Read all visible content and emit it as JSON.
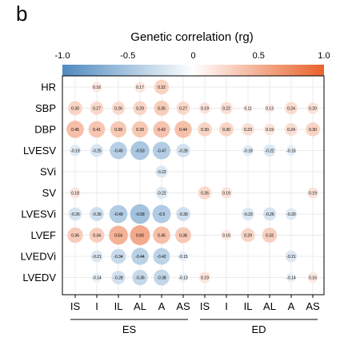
{
  "panel_letter": "b",
  "colors": {
    "negative": "#4f8ac0",
    "neutral": "#ffffff",
    "positive": "#e8622a",
    "grid": "#ebebeb",
    "frame": "#000000"
  },
  "chart_data": {
    "type": "heatmap",
    "title": "Genetic correlation (rg)",
    "color_scale": {
      "min": -1.0,
      "max": 1.0,
      "ticks": [
        -1.0,
        -0.5,
        0,
        0.5,
        1.0
      ],
      "tick_labels": [
        "-1.0",
        "-0.5",
        "0",
        "0.5",
        "1.0"
      ]
    },
    "rows": [
      "HR",
      "SBP",
      "DBP",
      "LVESV",
      "SVi",
      "SV",
      "LVESVi",
      "LVEF",
      "LVEDVi",
      "LVEDV"
    ],
    "columns": [
      "IS",
      "I",
      "IL",
      "AL",
      "A",
      "AS",
      "IS",
      "I",
      "IL",
      "AL",
      "A",
      "AS"
    ],
    "column_groups": [
      {
        "label": "ES",
        "span": [
          0,
          5
        ]
      },
      {
        "label": "ED",
        "span": [
          6,
          11
        ]
      }
    ],
    "values": [
      [
        null,
        0.16,
        null,
        0.17,
        0.32,
        null,
        null,
        null,
        null,
        null,
        null,
        null
      ],
      [
        0.3,
        0.27,
        0.26,
        0.29,
        0.35,
        0.27,
        0.19,
        0.22,
        0.11,
        0.13,
        0.24,
        0.2
      ],
      [
        0.45,
        0.41,
        0.39,
        0.39,
        0.42,
        0.44,
        0.3,
        0.3,
        0.23,
        0.19,
        0.24,
        0.3
      ],
      [
        -0.19,
        -0.25,
        -0.45,
        -0.53,
        -0.47,
        -0.28,
        null,
        null,
        -0.18,
        -0.22,
        -0.16,
        null
      ],
      [
        null,
        null,
        null,
        null,
        -0.22,
        null,
        null,
        null,
        null,
        null,
        null,
        null
      ],
      [
        0.18,
        null,
        null,
        null,
        -0.22,
        null,
        0.26,
        0.19,
        null,
        null,
        null,
        0.19
      ],
      [
        -0.26,
        -0.3,
        -0.49,
        -0.58,
        -0.5,
        -0.3,
        null,
        null,
        -0.23,
        -0.26,
        -0.2,
        null
      ],
      [
        0.36,
        0.34,
        0.54,
        0.6,
        0.45,
        0.38,
        null,
        0.16,
        0.29,
        0.33,
        null,
        null
      ],
      [
        null,
        -0.21,
        -0.34,
        -0.44,
        -0.42,
        -0.15,
        null,
        null,
        null,
        null,
        -0.21,
        null
      ],
      [
        null,
        -0.14,
        -0.28,
        -0.36,
        -0.38,
        -0.13,
        0.19,
        null,
        null,
        null,
        -0.14,
        0.16
      ]
    ],
    "value_labels": [
      [
        null,
        "0.16",
        null,
        "0.17",
        "0.32",
        null,
        null,
        null,
        null,
        null,
        null,
        null
      ],
      [
        "0.30",
        "0.27",
        "0.26",
        "0.29",
        "0.35",
        "0.27",
        "0.19",
        "0.22",
        "0.11",
        "0.13",
        "0.24",
        "0.20"
      ],
      [
        "0.45",
        "0.41",
        "0.39",
        "0.39",
        "0.42",
        "0.44",
        "0.30",
        "0.30",
        "0.23",
        "0.19",
        "0.24",
        "0.30"
      ],
      [
        "-0.19",
        "-0.25",
        "-0.45",
        "-0.53",
        "-0.47",
        "-0.28",
        null,
        null,
        "-0.18",
        "-0.22",
        "-0.16",
        null
      ],
      [
        null,
        null,
        null,
        null,
        "-0.22",
        null,
        null,
        null,
        null,
        null,
        null,
        null
      ],
      [
        "0.18",
        null,
        null,
        null,
        "-0.22",
        null,
        "0.26",
        "0.19",
        null,
        null,
        null,
        "0.19"
      ],
      [
        "-0.26",
        "-0.30",
        "-0.49",
        "-0.58",
        "-0.5",
        "-0.30",
        null,
        null,
        "-0.23",
        "-0.26",
        "-0.20",
        null
      ],
      [
        "0.36",
        "0.34",
        "0.54",
        "0.60",
        "0.45",
        "0.38",
        null,
        "0.16",
        "0.29",
        "0.33",
        null,
        null
      ],
      [
        null,
        "-0.21",
        "-0.34",
        "-0.44",
        "-0.42",
        "-0.15",
        null,
        null,
        null,
        null,
        "-0.21",
        null
      ],
      [
        null,
        "-0.14",
        "-0.28",
        "-0.36",
        "-0.38",
        "-0.13",
        "0.19",
        null,
        null,
        null,
        "-0.14",
        "0.16"
      ]
    ],
    "grid": true,
    "legend_position": "top"
  }
}
